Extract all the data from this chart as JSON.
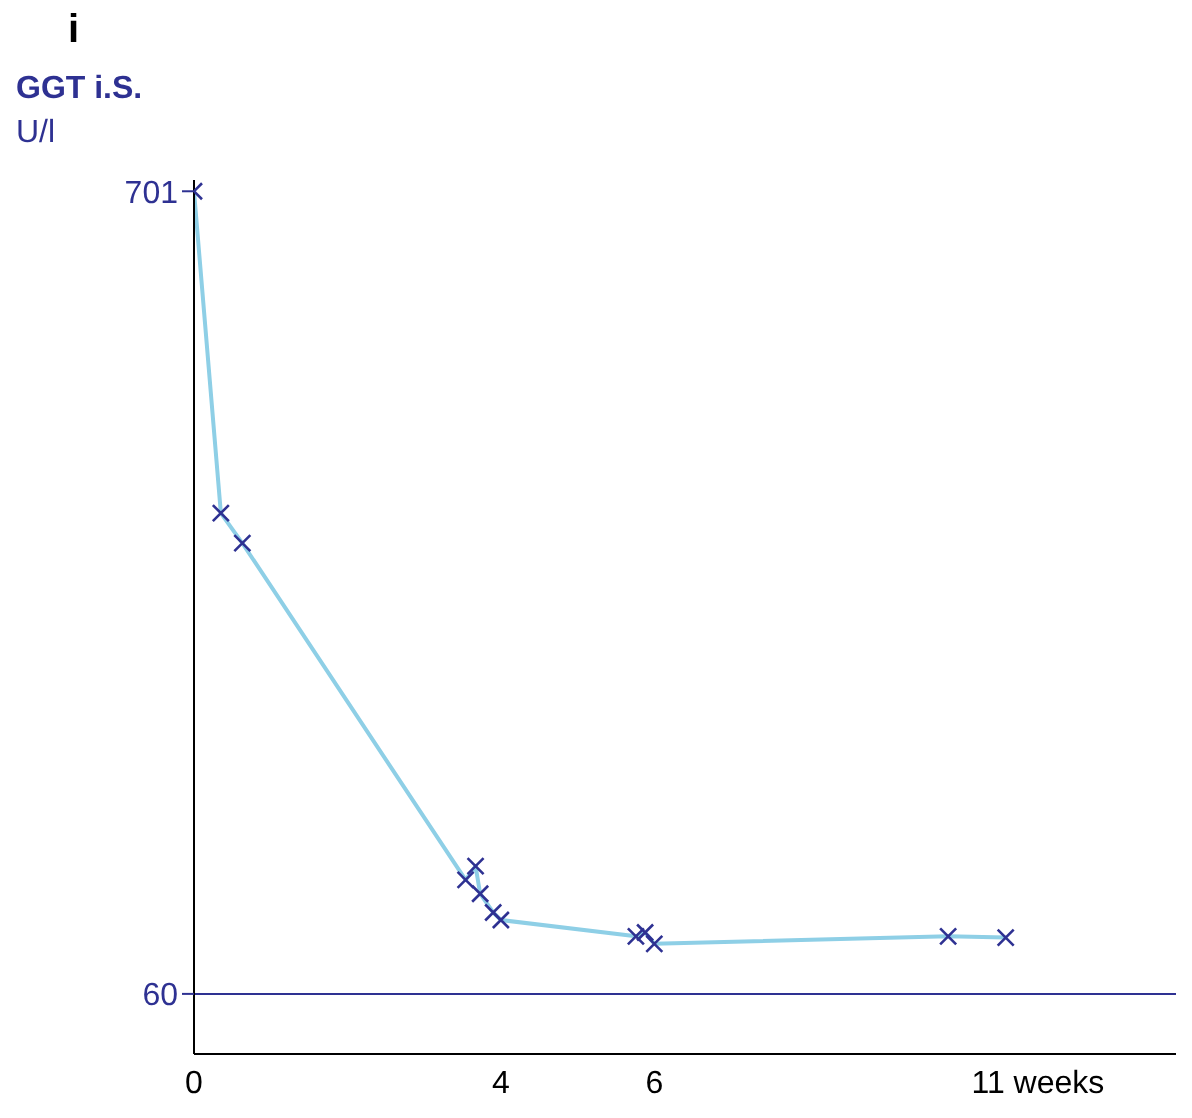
{
  "chart_data": {
    "type": "line",
    "title": "i",
    "ylabel": "GGT i.S.\nU/l",
    "x": [
      0,
      0.35,
      0.63,
      3.54,
      3.67,
      3.73,
      3.9,
      4.0,
      5.76,
      5.88,
      6.0,
      9.83,
      10.58
    ],
    "series": [
      {
        "color": "#8ecfe6",
        "values": [
          701,
          444,
          420,
          151,
          162,
          140,
          125,
          119,
          106,
          109,
          100,
          106,
          105
        ]
      }
    ],
    "xlim": [
      0,
      12.8
    ],
    "xticks": [
      0,
      4,
      6,
      {
        "value": 11,
        "label": "11 weeks"
      }
    ],
    "ylim": [
      12,
      710
    ],
    "yticks": [
      60,
      701
    ],
    "ref_lines": [
      {
        "axis": "y",
        "value": 60,
        "color": "#2e3192"
      }
    ],
    "marker": "cross",
    "line_style": "solid"
  }
}
